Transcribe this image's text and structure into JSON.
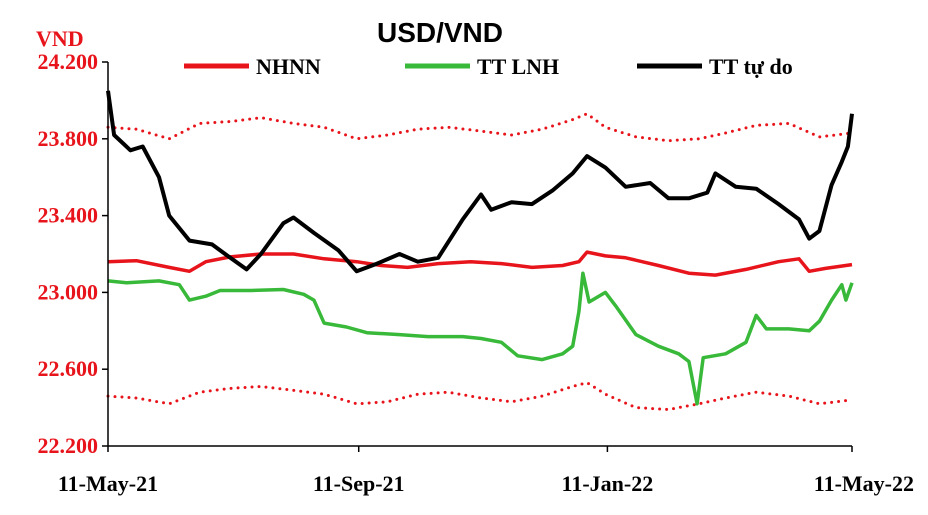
{
  "chart_data": {
    "type": "line",
    "title": "USD/VND",
    "ylabel": "VND",
    "ylim": [
      22200,
      24200
    ],
    "y_ticks": [
      "22.200",
      "22.600",
      "23.000",
      "23.400",
      "23.800",
      "24.200"
    ],
    "y_tick_values": [
      22200,
      22600,
      23000,
      23400,
      23800,
      24200
    ],
    "x_ticks": [
      "11-May-21",
      "11-Sep-21",
      "11-Jan-22",
      "11-May-22"
    ],
    "x_tick_dates": [
      "2021-05-11",
      "2021-09-11",
      "2022-01-11",
      "2022-05-11"
    ],
    "grid": false,
    "legend_position": "top",
    "series": [
      {
        "name": "NHNN",
        "color": "#e8141b",
        "style": "solid",
        "points": [
          [
            "2021-05-11",
            23160
          ],
          [
            "2021-05-25",
            23165
          ],
          [
            "2021-06-10",
            23130
          ],
          [
            "2021-06-20",
            23110
          ],
          [
            "2021-06-28",
            23160
          ],
          [
            "2021-07-10",
            23185
          ],
          [
            "2021-07-25",
            23200
          ],
          [
            "2021-08-10",
            23200
          ],
          [
            "2021-08-25",
            23175
          ],
          [
            "2021-09-10",
            23160
          ],
          [
            "2021-09-22",
            23140
          ],
          [
            "2021-10-05",
            23130
          ],
          [
            "2021-10-20",
            23150
          ],
          [
            "2021-11-05",
            23160
          ],
          [
            "2021-11-20",
            23150
          ],
          [
            "2021-12-05",
            23130
          ],
          [
            "2021-12-20",
            23140
          ],
          [
            "2021-12-28",
            23160
          ],
          [
            "2022-01-01",
            23210
          ],
          [
            "2022-01-10",
            23190
          ],
          [
            "2022-01-20",
            23180
          ],
          [
            "2022-02-05",
            23140
          ],
          [
            "2022-02-20",
            23100
          ],
          [
            "2022-03-05",
            23090
          ],
          [
            "2022-03-20",
            23120
          ],
          [
            "2022-04-05",
            23160
          ],
          [
            "2022-04-15",
            23175
          ],
          [
            "2022-04-20",
            23110
          ],
          [
            "2022-04-28",
            23125
          ],
          [
            "2022-05-11",
            23145
          ]
        ]
      },
      {
        "name": "",
        "color": "#e8141b",
        "style": "dotted",
        "points": [
          [
            "2021-05-11",
            23860
          ],
          [
            "2021-05-25",
            23850
          ],
          [
            "2021-06-10",
            23800
          ],
          [
            "2021-06-25",
            23880
          ],
          [
            "2021-07-10",
            23890
          ],
          [
            "2021-07-25",
            23910
          ],
          [
            "2021-08-10",
            23880
          ],
          [
            "2021-08-25",
            23860
          ],
          [
            "2021-09-10",
            23800
          ],
          [
            "2021-09-25",
            23820
          ],
          [
            "2021-10-10",
            23850
          ],
          [
            "2021-10-25",
            23860
          ],
          [
            "2021-11-10",
            23840
          ],
          [
            "2021-11-25",
            23820
          ],
          [
            "2021-12-10",
            23850
          ],
          [
            "2021-12-25",
            23900
          ],
          [
            "2022-01-01",
            23930
          ],
          [
            "2022-01-10",
            23860
          ],
          [
            "2022-01-25",
            23810
          ],
          [
            "2022-02-10",
            23790
          ],
          [
            "2022-02-25",
            23800
          ],
          [
            "2022-03-10",
            23830
          ],
          [
            "2022-03-25",
            23870
          ],
          [
            "2022-04-10",
            23880
          ],
          [
            "2022-04-25",
            23810
          ],
          [
            "2022-05-11",
            23830
          ]
        ]
      },
      {
        "name": "",
        "color": "#e8141b",
        "style": "dotted",
        "points": [
          [
            "2021-05-11",
            22460
          ],
          [
            "2021-05-25",
            22450
          ],
          [
            "2021-06-10",
            22420
          ],
          [
            "2021-06-25",
            22480
          ],
          [
            "2021-07-10",
            22500
          ],
          [
            "2021-07-25",
            22510
          ],
          [
            "2021-08-10",
            22490
          ],
          [
            "2021-08-25",
            22470
          ],
          [
            "2021-09-10",
            22420
          ],
          [
            "2021-09-25",
            22430
          ],
          [
            "2021-10-10",
            22470
          ],
          [
            "2021-10-25",
            22480
          ],
          [
            "2021-11-10",
            22450
          ],
          [
            "2021-11-25",
            22430
          ],
          [
            "2021-12-10",
            22460
          ],
          [
            "2021-12-25",
            22510
          ],
          [
            "2022-01-01",
            22530
          ],
          [
            "2022-01-10",
            22470
          ],
          [
            "2022-01-25",
            22400
          ],
          [
            "2022-02-10",
            22390
          ],
          [
            "2022-02-25",
            22420
          ],
          [
            "2022-03-10",
            22450
          ],
          [
            "2022-03-25",
            22480
          ],
          [
            "2022-04-10",
            22460
          ],
          [
            "2022-04-25",
            22420
          ],
          [
            "2022-05-11",
            22440
          ]
        ]
      },
      {
        "name": "TT LNH",
        "color": "#39b93a",
        "style": "solid",
        "points": [
          [
            "2021-05-11",
            23060
          ],
          [
            "2021-05-20",
            23050
          ],
          [
            "2021-06-05",
            23060
          ],
          [
            "2021-06-15",
            23040
          ],
          [
            "2021-06-20",
            22960
          ],
          [
            "2021-06-28",
            22980
          ],
          [
            "2021-07-05",
            23010
          ],
          [
            "2021-07-20",
            23010
          ],
          [
            "2021-08-05",
            23015
          ],
          [
            "2021-08-15",
            22990
          ],
          [
            "2021-08-20",
            22960
          ],
          [
            "2021-08-25",
            22840
          ],
          [
            "2021-09-05",
            22820
          ],
          [
            "2021-09-15",
            22790
          ],
          [
            "2021-10-01",
            22780
          ],
          [
            "2021-10-15",
            22770
          ],
          [
            "2021-11-01",
            22770
          ],
          [
            "2021-11-10",
            22760
          ],
          [
            "2021-11-20",
            22740
          ],
          [
            "2021-11-28",
            22670
          ],
          [
            "2021-12-10",
            22650
          ],
          [
            "2021-12-20",
            22680
          ],
          [
            "2021-12-25",
            22720
          ],
          [
            "2021-12-28",
            22900
          ],
          [
            "2021-12-30",
            23100
          ],
          [
            "2022-01-02",
            22950
          ],
          [
            "2022-01-10",
            23000
          ],
          [
            "2022-01-15",
            22930
          ],
          [
            "2022-01-25",
            22780
          ],
          [
            "2022-02-05",
            22720
          ],
          [
            "2022-02-15",
            22680
          ],
          [
            "2022-02-20",
            22640
          ],
          [
            "2022-02-24",
            22420
          ],
          [
            "2022-02-27",
            22660
          ],
          [
            "2022-03-10",
            22680
          ],
          [
            "2022-03-20",
            22740
          ],
          [
            "2022-03-25",
            22880
          ],
          [
            "2022-03-30",
            22810
          ],
          [
            "2022-04-10",
            22810
          ],
          [
            "2022-04-20",
            22800
          ],
          [
            "2022-04-25",
            22850
          ],
          [
            "2022-05-01",
            22960
          ],
          [
            "2022-05-06",
            23040
          ],
          [
            "2022-05-08",
            22960
          ],
          [
            "2022-05-11",
            23050
          ]
        ]
      },
      {
        "name": "TT tự do",
        "color": "#000000",
        "style": "solid",
        "points": [
          [
            "2021-05-11",
            24050
          ],
          [
            "2021-05-14",
            23820
          ],
          [
            "2021-05-22",
            23740
          ],
          [
            "2021-05-28",
            23760
          ],
          [
            "2021-06-05",
            23600
          ],
          [
            "2021-06-10",
            23400
          ],
          [
            "2021-06-20",
            23270
          ],
          [
            "2021-07-01",
            23250
          ],
          [
            "2021-07-10",
            23180
          ],
          [
            "2021-07-18",
            23120
          ],
          [
            "2021-07-25",
            23200
          ],
          [
            "2021-08-05",
            23360
          ],
          [
            "2021-08-10",
            23390
          ],
          [
            "2021-08-20",
            23310
          ],
          [
            "2021-09-01",
            23220
          ],
          [
            "2021-09-10",
            23110
          ],
          [
            "2021-09-20",
            23150
          ],
          [
            "2021-10-01",
            23200
          ],
          [
            "2021-10-10",
            23160
          ],
          [
            "2021-10-20",
            23180
          ],
          [
            "2021-11-01",
            23380
          ],
          [
            "2021-11-10",
            23510
          ],
          [
            "2021-11-15",
            23430
          ],
          [
            "2021-11-25",
            23470
          ],
          [
            "2021-12-05",
            23460
          ],
          [
            "2021-12-15",
            23530
          ],
          [
            "2021-12-25",
            23620
          ],
          [
            "2022-01-01",
            23710
          ],
          [
            "2022-01-10",
            23650
          ],
          [
            "2022-01-20",
            23550
          ],
          [
            "2022-02-01",
            23570
          ],
          [
            "2022-02-10",
            23490
          ],
          [
            "2022-02-20",
            23490
          ],
          [
            "2022-03-01",
            23520
          ],
          [
            "2022-03-05",
            23620
          ],
          [
            "2022-03-15",
            23550
          ],
          [
            "2022-03-25",
            23540
          ],
          [
            "2022-04-05",
            23460
          ],
          [
            "2022-04-15",
            23380
          ],
          [
            "2022-04-20",
            23280
          ],
          [
            "2022-04-25",
            23320
          ],
          [
            "2022-05-01",
            23560
          ],
          [
            "2022-05-06",
            23680
          ],
          [
            "2022-05-09",
            23760
          ],
          [
            "2022-05-11",
            23930
          ]
        ]
      }
    ]
  }
}
